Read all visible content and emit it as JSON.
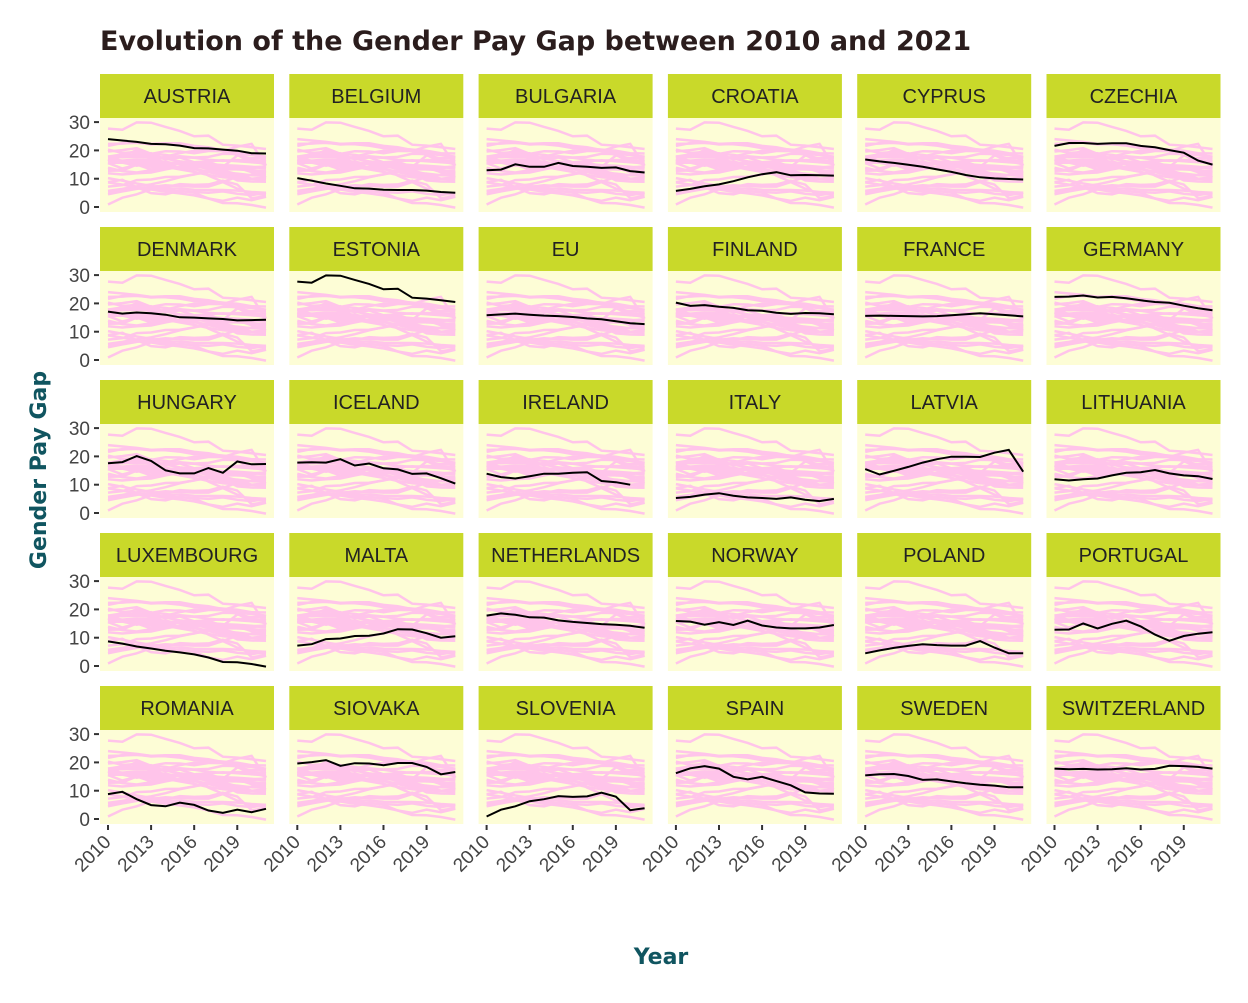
{
  "colors": {
    "strip": "#c9d92a",
    "panel_bg": "#fdfdd6",
    "background_lines": "#ffc4ea",
    "highlight_line": "#000000",
    "axis_title": "#105560",
    "title": "#2b1d1d"
  },
  "chart_data": {
    "type": "line",
    "layout": "facet-grid 5 rows x 6 columns; each panel highlights one country in black over all countries in pink",
    "title": "Evolution of the Gender Pay Gap between 2010 and 2021",
    "xlabel": "Year",
    "ylabel": "Gender Pay Gap",
    "x": [
      2010,
      2011,
      2012,
      2013,
      2014,
      2015,
      2016,
      2017,
      2018,
      2019,
      2020,
      2021
    ],
    "xticks": [
      "2010",
      "2013",
      "2016",
      "2019"
    ],
    "yticks": [
      "0",
      "10",
      "20",
      "30"
    ],
    "ylim": [
      0,
      30
    ],
    "grid": false,
    "series": [
      {
        "name": "AUSTRIA",
        "values": [
          24,
          23.5,
          23,
          22.3,
          22.2,
          21.7,
          20.8,
          20.7,
          20.3,
          19.9,
          19.0,
          18.9
        ]
      },
      {
        "name": "BELGIUM",
        "values": [
          10.2,
          9.3,
          8.3,
          7.5,
          6.6,
          6.5,
          6.1,
          6.0,
          6.0,
          5.8,
          5.3,
          5.0
        ]
      },
      {
        "name": "BULGARIA",
        "values": [
          13.0,
          13.2,
          15.1,
          14.2,
          14.2,
          15.6,
          14.5,
          14.2,
          13.8,
          14.0,
          12.7,
          12.2
        ]
      },
      {
        "name": "CROATIA",
        "values": [
          5.7,
          6.4,
          7.3,
          8.0,
          9.1,
          10.5,
          11.6,
          12.3,
          11.2,
          11.3,
          11.2,
          11.1
        ]
      },
      {
        "name": "CYPRUS",
        "values": [
          16.8,
          16.1,
          15.6,
          14.9,
          14.2,
          13.3,
          12.4,
          11.3,
          10.5,
          10.1,
          9.9,
          9.7
        ]
      },
      {
        "name": "CZECHIA",
        "values": [
          21.6,
          22.6,
          22.6,
          22.3,
          22.5,
          22.5,
          21.6,
          21.1,
          20.1,
          19.2,
          16.4,
          15.0
        ]
      },
      {
        "name": "DENMARK",
        "values": [
          17.1,
          16.4,
          16.8,
          16.5,
          16.0,
          15.1,
          15.0,
          14.7,
          14.5,
          14.0,
          14.1,
          14.2
        ]
      },
      {
        "name": "ESTONIA",
        "values": [
          27.7,
          27.3,
          29.9,
          29.8,
          28.3,
          26.9,
          25.0,
          25.2,
          22.0,
          21.7,
          21.1,
          20.5
        ]
      },
      {
        "name": "EU",
        "values": [
          15.8,
          16.1,
          16.4,
          16.0,
          15.7,
          15.5,
          15.2,
          14.7,
          14.4,
          13.7,
          13.0,
          12.7
        ]
      },
      {
        "name": "FINLAND",
        "values": [
          20.3,
          19.1,
          19.4,
          18.8,
          18.4,
          17.6,
          17.4,
          16.7,
          16.3,
          16.6,
          16.5,
          16.2
        ]
      },
      {
        "name": "FRANCE",
        "values": [
          15.6,
          15.7,
          15.6,
          15.5,
          15.4,
          15.5,
          15.8,
          16.2,
          16.5,
          16.2,
          15.8,
          15.4
        ]
      },
      {
        "name": "GERMANY",
        "values": [
          22.3,
          22.4,
          22.8,
          22.1,
          22.3,
          21.8,
          21.1,
          20.5,
          20.2,
          19.2,
          18.3,
          17.6
        ]
      },
      {
        "name": "HUNGARY",
        "values": [
          17.6,
          18.0,
          20.1,
          18.4,
          15.1,
          14.0,
          14.0,
          15.9,
          14.2,
          18.2,
          17.2,
          17.3
        ]
      },
      {
        "name": "ICELAND",
        "values": [
          17.8,
          17.9,
          17.8,
          19.0,
          16.8,
          17.5,
          15.8,
          15.4,
          13.8,
          14.0,
          12.3,
          10.4
        ]
      },
      {
        "name": "IRELAND",
        "values": [
          13.9,
          12.7,
          12.2,
          13.0,
          13.9,
          13.9,
          14.2,
          14.4,
          11.3,
          10.9,
          10.0,
          null
        ]
      },
      {
        "name": "ITALY",
        "values": [
          5.3,
          5.7,
          6.5,
          7.0,
          6.1,
          5.5,
          5.3,
          5.0,
          5.5,
          4.7,
          4.2,
          5.0
        ]
      },
      {
        "name": "LATVIA",
        "values": [
          15.5,
          13.6,
          14.9,
          16.3,
          17.8,
          19.0,
          19.9,
          19.9,
          19.8,
          21.3,
          22.3,
          14.6
        ]
      },
      {
        "name": "LITHUANIA",
        "values": [
          11.9,
          11.5,
          11.9,
          12.2,
          13.3,
          14.2,
          14.4,
          15.2,
          14.0,
          13.3,
          13.0,
          12.0
        ]
      },
      {
        "name": "LUXEMBOURG",
        "values": [
          8.7,
          7.9,
          6.9,
          6.2,
          5.4,
          4.8,
          4.1,
          3.0,
          1.4,
          1.3,
          0.7,
          -0.2
        ]
      },
      {
        "name": "MALTA",
        "values": [
          7.2,
          7.7,
          9.5,
          9.7,
          10.6,
          10.7,
          11.5,
          13.0,
          12.9,
          11.6,
          10.0,
          10.5
        ]
      },
      {
        "name": "NETHERLANDS",
        "values": [
          17.8,
          18.6,
          18.1,
          17.2,
          17.1,
          16.1,
          15.6,
          15.2,
          14.8,
          14.6,
          14.2,
          13.5
        ]
      },
      {
        "name": "NORWAY",
        "values": [
          15.9,
          15.7,
          14.6,
          15.5,
          14.5,
          16.0,
          14.3,
          13.6,
          13.3,
          13.3,
          13.6,
          14.5
        ]
      },
      {
        "name": "POLAND",
        "values": [
          4.5,
          5.5,
          6.4,
          7.1,
          7.7,
          7.4,
          7.2,
          7.2,
          8.8,
          6.5,
          4.5,
          4.5
        ]
      },
      {
        "name": "PORTUGAL",
        "values": [
          12.8,
          12.9,
          15.0,
          13.3,
          14.9,
          16.0,
          14.0,
          11.1,
          8.9,
          10.6,
          11.4,
          11.9
        ]
      },
      {
        "name": "ROMANIA",
        "values": [
          8.8,
          9.6,
          7.0,
          4.9,
          4.5,
          5.8,
          5.0,
          3.0,
          2.2,
          3.3,
          2.4,
          3.6
        ]
      },
      {
        "name": "SIOVAKA",
        "values": [
          19.6,
          20.1,
          20.8,
          18.8,
          19.7,
          19.6,
          19.0,
          19.8,
          19.8,
          18.4,
          15.8,
          16.6
        ]
      },
      {
        "name": "SLOVENIA",
        "values": [
          0.9,
          3.3,
          4.5,
          6.3,
          7.0,
          8.1,
          7.8,
          8.0,
          9.3,
          7.9,
          3.1,
          3.8
        ]
      },
      {
        "name": "SPAIN",
        "values": [
          16.2,
          17.9,
          18.7,
          17.8,
          14.9,
          14.0,
          14.9,
          13.4,
          11.9,
          9.4,
          9.0,
          8.9
        ]
      },
      {
        "name": "SWEDEN",
        "values": [
          15.4,
          15.8,
          15.9,
          15.2,
          13.8,
          14.0,
          13.3,
          12.6,
          12.1,
          11.8,
          11.2,
          11.2
        ]
      },
      {
        "name": "SWITZERLAND",
        "values": [
          17.8,
          17.6,
          17.7,
          17.5,
          17.6,
          17.9,
          17.5,
          17.7,
          18.8,
          18.7,
          18.4,
          17.8
        ]
      }
    ]
  }
}
